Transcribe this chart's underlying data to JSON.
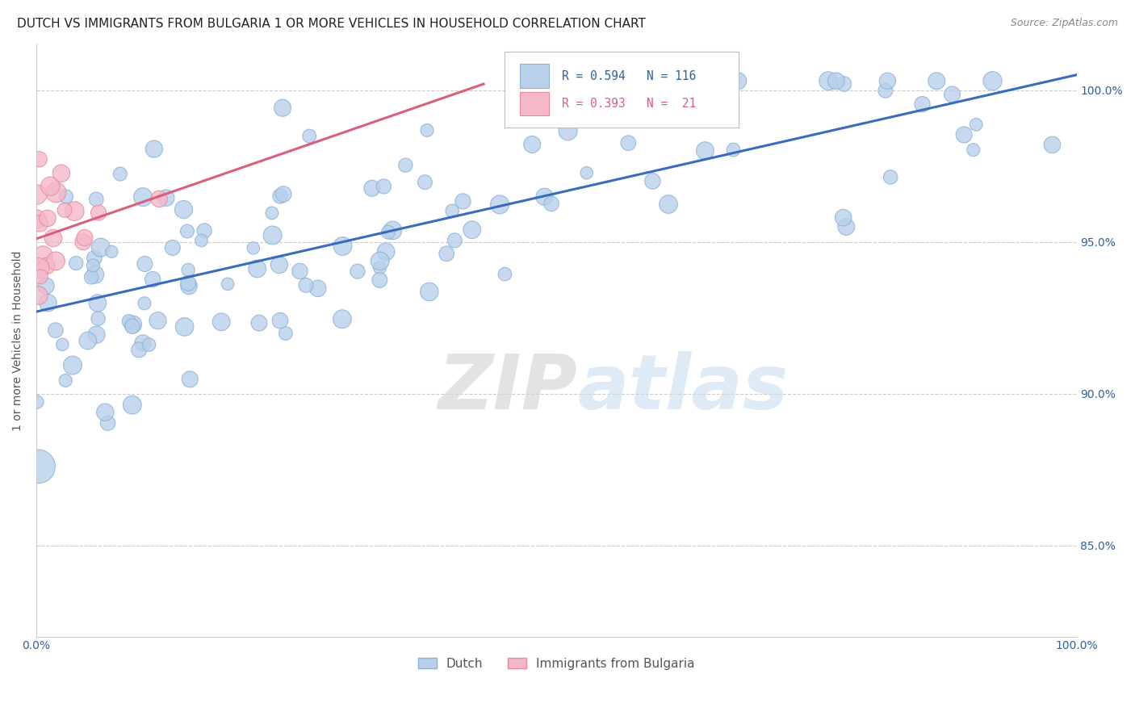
{
  "title": "DUTCH VS IMMIGRANTS FROM BULGARIA 1 OR MORE VEHICLES IN HOUSEHOLD CORRELATION CHART",
  "source": "Source: ZipAtlas.com",
  "ylabel": "1 or more Vehicles in Household",
  "ytick_labels": [
    "100.0%",
    "95.0%",
    "90.0%",
    "85.0%"
  ],
  "ytick_values": [
    1.0,
    0.95,
    0.9,
    0.85
  ],
  "xrange": [
    0.0,
    1.0
  ],
  "yrange": [
    0.82,
    1.015
  ],
  "watermark_zip": "ZIP",
  "watermark_atlas": "atlas",
  "legend_entries": [
    {
      "label": "Dutch"
    },
    {
      "label": "Immigrants from Bulgaria"
    }
  ],
  "blue_R": 0.594,
  "blue_N": 116,
  "pink_R": 0.393,
  "pink_N": 21,
  "blue_line_color": "#3a6bbf",
  "pink_line_color": "#d9607a",
  "blue_scatter_color": "#b8d0ea",
  "pink_scatter_color": "#f4b8c8",
  "blue_scatter_edge": "#8ab0d8",
  "pink_scatter_edge": "#e888a0",
  "annotation_color_blue": "#3060a0",
  "annotation_color_pink": "#d9607a",
  "title_fontsize": 11,
  "axis_label_fontsize": 10,
  "tick_fontsize": 10,
  "source_fontsize": 9,
  "background_color": "#ffffff",
  "grid_color": "#cccccc",
  "blue_line_y0": 0.927,
  "blue_line_y1": 1.005,
  "pink_line_x0": 0.0,
  "pink_line_x1": 0.43,
  "pink_line_y0": 0.951,
  "pink_line_y1": 1.002
}
